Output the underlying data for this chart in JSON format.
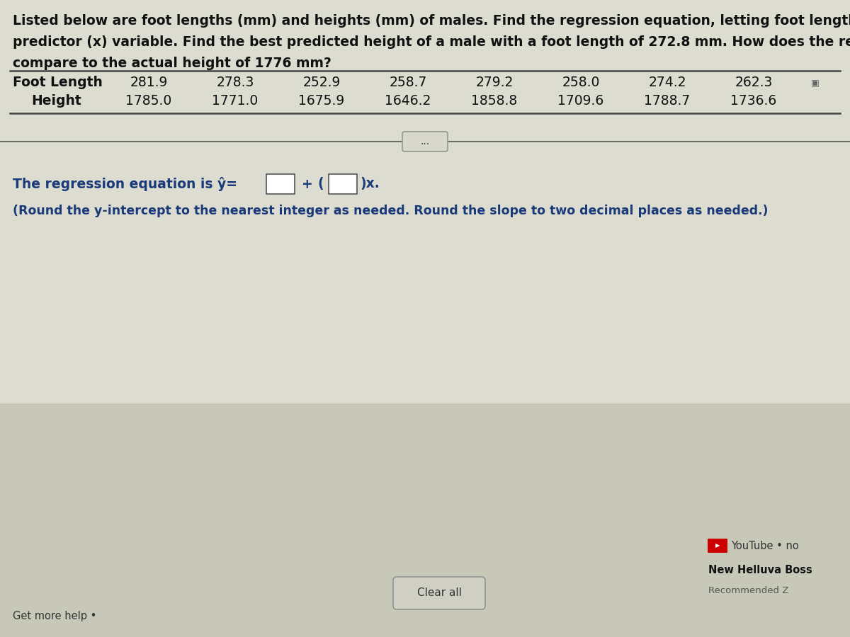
{
  "title_text_line1": "Listed below are foot lengths (mm) and heights (mm) of males. Find the regression equation, letting foot length be the",
  "title_text_line2": "predictor (x) variable. Find the best predicted height of a male with a foot length of 272.8 mm. How does the result",
  "title_text_line3": "compare to the actual height of 1776 mm?",
  "foot_label": "Foot Length",
  "height_label": "Height",
  "foot_lengths": [
    "281.9",
    "278.3",
    "252.9",
    "258.7",
    "279.2",
    "258.0",
    "274.2",
    "262.3"
  ],
  "heights": [
    "1785.0",
    "1771.0",
    "1675.9",
    "1646.2",
    "1858.8",
    "1709.6",
    "1788.7",
    "1736.6"
  ],
  "regression_prefix": "The regression equation is ŷ=",
  "regression_plus": "+",
  "regression_suffix": "x.",
  "regression_note": "(Round the y-intercept to the nearest integer as needed. Round the slope to two decimal places as needed.)",
  "youtube_text": "YouTube • no",
  "helluva_text": "New Helluva Boss",
  "recommended_text": "Recommended Z",
  "clear_all_text": "Clear all",
  "get_more_text": "Get more help •",
  "bg_color": "#c2c2b2",
  "upper_bg_color": "#dcdcd0",
  "lower_bg_color": "#c8c8b8",
  "text_dark": "#111111",
  "text_blue": "#1a3a7a",
  "title_fs": 13.5,
  "table_fs": 13.5,
  "reg_fs": 13.5,
  "note_fs": 12.5,
  "small_fs": 10.5
}
